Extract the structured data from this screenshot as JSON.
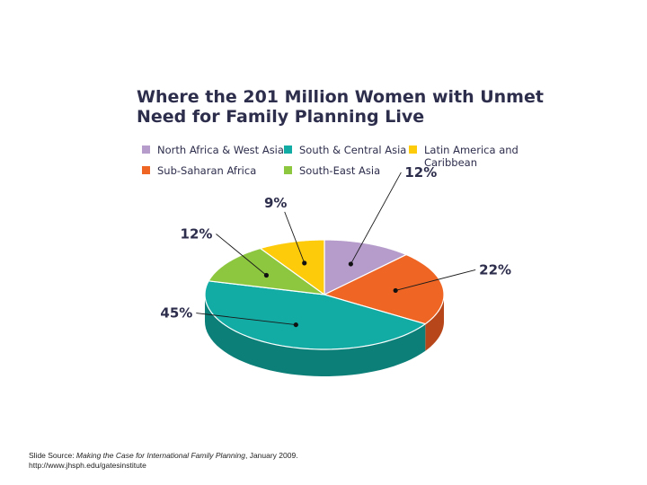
{
  "chart_data": {
    "type": "pie",
    "title_line1": "Where the 201 Million Women with Unmet",
    "title_line2": "Need for Family Planning Live",
    "slices": [
      {
        "name": "North Africa & West Asia",
        "value": 12,
        "label": "12%",
        "color": "#b59ccb",
        "side": "#8c74a3"
      },
      {
        "name": "Sub-Saharan Africa",
        "value": 22,
        "label": "22%",
        "color": "#ef6624",
        "side": "#b7471b"
      },
      {
        "name": "South & Central Asia",
        "value": 45,
        "label": "45%",
        "color": "#13aca5",
        "side": "#0c7f78"
      },
      {
        "name": "South-East Asia",
        "value": 12,
        "label": "12%",
        "color": "#8dc63f",
        "side": "#6a9a2c"
      },
      {
        "name": "Latin America and\nCaribbean",
        "value": 9,
        "label": "9%",
        "color": "#fdcb0a",
        "side": "#c69d06"
      }
    ],
    "legend_placement": "top"
  },
  "source": {
    "prefix": "Slide Source: ",
    "italic": "Making the Case for International Family Planning",
    "suffix": ", January 2009.",
    "url": "http://www.jhsph.edu/gatesinstitute"
  }
}
